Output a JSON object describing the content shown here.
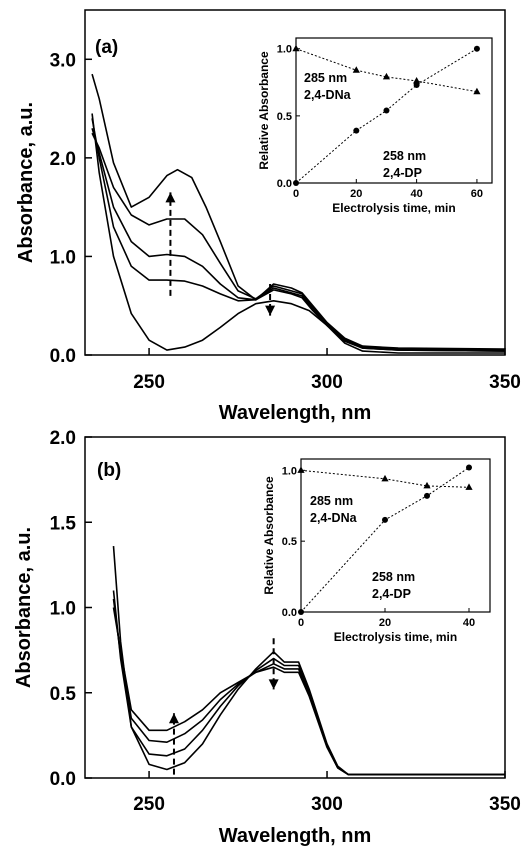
{
  "colors": {
    "ink": "#000000",
    "background": "#ffffff"
  },
  "chart_data": [
    {
      "type": "line",
      "panel_label": "(a)",
      "xlabel": "Wavelength, nm",
      "ylabel": "Absorbance, a.u.",
      "xlim": [
        232,
        350
      ],
      "ylim": [
        0,
        3.5
      ],
      "xticks": [
        250,
        300,
        350
      ],
      "yticks": [
        0.0,
        1.0,
        2.0,
        3.0
      ],
      "xtick_labels": [
        "250",
        "300",
        "350"
      ],
      "ytick_labels": [
        "0.0",
        "1.0",
        "2.0",
        "3.0"
      ],
      "grid": false,
      "series": [
        {
          "values": [
            [
              234,
              2.45
            ],
            [
              236,
              1.85
            ],
            [
              240,
              1.0
            ],
            [
              245,
              0.42
            ],
            [
              250,
              0.15
            ],
            [
              255,
              0.05
            ],
            [
              260,
              0.08
            ],
            [
              265,
              0.15
            ],
            [
              270,
              0.28
            ],
            [
              275,
              0.42
            ],
            [
              280,
              0.52
            ],
            [
              285,
              0.55
            ],
            [
              290,
              0.52
            ],
            [
              295,
              0.45
            ],
            [
              300,
              0.3
            ],
            [
              305,
              0.12
            ],
            [
              310,
              0.04
            ],
            [
              320,
              0.02
            ],
            [
              350,
              0.02
            ]
          ]
        },
        {
          "values": [
            [
              234,
              2.4
            ],
            [
              236,
              2.0
            ],
            [
              240,
              1.3
            ],
            [
              245,
              0.9
            ],
            [
              250,
              0.76
            ],
            [
              255,
              0.76
            ],
            [
              260,
              0.75
            ],
            [
              265,
              0.7
            ],
            [
              270,
              0.62
            ],
            [
              275,
              0.55
            ],
            [
              280,
              0.56
            ],
            [
              285,
              0.66
            ],
            [
              290,
              0.62
            ],
            [
              293,
              0.58
            ],
            [
              296,
              0.45
            ],
            [
              300,
              0.3
            ],
            [
              305,
              0.14
            ],
            [
              310,
              0.07
            ],
            [
              320,
              0.05
            ],
            [
              350,
              0.04
            ]
          ]
        },
        {
          "values": [
            [
              234,
              2.3
            ],
            [
              236,
              2.05
            ],
            [
              240,
              1.5
            ],
            [
              245,
              1.15
            ],
            [
              250,
              1.0
            ],
            [
              255,
              1.02
            ],
            [
              260,
              1.0
            ],
            [
              265,
              0.9
            ],
            [
              270,
              0.72
            ],
            [
              275,
              0.58
            ],
            [
              280,
              0.56
            ],
            [
              285,
              0.68
            ],
            [
              290,
              0.63
            ],
            [
              293,
              0.6
            ],
            [
              296,
              0.46
            ],
            [
              300,
              0.3
            ],
            [
              305,
              0.15
            ],
            [
              310,
              0.07
            ],
            [
              320,
              0.05
            ],
            [
              350,
              0.04
            ]
          ]
        },
        {
          "values": [
            [
              234,
              2.25
            ],
            [
              236,
              2.1
            ],
            [
              240,
              1.7
            ],
            [
              245,
              1.42
            ],
            [
              250,
              1.32
            ],
            [
              255,
              1.38
            ],
            [
              260,
              1.38
            ],
            [
              265,
              1.22
            ],
            [
              270,
              0.93
            ],
            [
              275,
              0.65
            ],
            [
              280,
              0.57
            ],
            [
              285,
              0.7
            ],
            [
              290,
              0.65
            ],
            [
              293,
              0.62
            ],
            [
              296,
              0.48
            ],
            [
              300,
              0.32
            ],
            [
              305,
              0.16
            ],
            [
              310,
              0.08
            ],
            [
              320,
              0.06
            ],
            [
              350,
              0.05
            ]
          ]
        },
        {
          "values": [
            [
              234,
              2.85
            ],
            [
              236,
              2.6
            ],
            [
              240,
              1.95
            ],
            [
              245,
              1.5
            ],
            [
              250,
              1.6
            ],
            [
              255,
              1.82
            ],
            [
              258,
              1.88
            ],
            [
              262,
              1.8
            ],
            [
              266,
              1.5
            ],
            [
              270,
              1.15
            ],
            [
              275,
              0.7
            ],
            [
              280,
              0.56
            ],
            [
              285,
              0.72
            ],
            [
              290,
              0.68
            ],
            [
              293,
              0.63
            ],
            [
              296,
              0.5
            ],
            [
              300,
              0.33
            ],
            [
              305,
              0.17
            ],
            [
              310,
              0.09
            ],
            [
              320,
              0.07
            ],
            [
              350,
              0.06
            ]
          ]
        }
      ],
      "annotations": [
        {
          "type": "arrow",
          "direction": "up",
          "x": 256,
          "from": 0.6,
          "to": 1.65
        },
        {
          "type": "arrow",
          "direction": "down",
          "x": 284,
          "from": 0.72,
          "to": 0.4
        }
      ],
      "inset": {
        "type": "scatter",
        "xlabel": "Electrolysis time, min",
        "ylabel": "Relative Absorbance",
        "xlim": [
          0,
          65
        ],
        "ylim": [
          0,
          1.08
        ],
        "xticks": [
          0,
          20,
          40,
          60
        ],
        "yticks": [
          0.0,
          0.5,
          1.0
        ],
        "xtick_labels": [
          "0",
          "20",
          "40",
          "60"
        ],
        "ytick_labels": [
          "0.0",
          "0.5",
          "1.0"
        ],
        "series": [
          {
            "name": "285 nm 2,4-DNa",
            "marker": "triangle",
            "x": [
              0,
              20,
              30,
              40,
              60
            ],
            "y": [
              1.0,
              0.84,
              0.79,
              0.76,
              0.68
            ]
          },
          {
            "name": "258 nm 2,4-DP",
            "marker": "circle",
            "x": [
              0,
              20,
              30,
              40,
              60
            ],
            "y": [
              0.0,
              0.39,
              0.54,
              0.73,
              1.0
            ]
          }
        ],
        "labels": [
          {
            "line1": "285 nm",
            "line2": "2,4-DNa"
          },
          {
            "line1": "258 nm",
            "line2": "2,4-DP"
          }
        ]
      }
    },
    {
      "type": "line",
      "panel_label": "(b)",
      "xlabel": "Wavelength, nm",
      "ylabel": "Absorbance, a.u.",
      "xlim": [
        232,
        350
      ],
      "ylim": [
        0,
        2.0
      ],
      "xticks": [
        250,
        300,
        350
      ],
      "yticks": [
        0.0,
        0.5,
        1.0,
        1.5,
        2.0
      ],
      "xtick_labels": [
        "250",
        "300",
        "350"
      ],
      "ytick_labels": [
        "0.0",
        "0.5",
        "1.0",
        "1.5",
        "2.0"
      ],
      "grid": false,
      "series": [
        {
          "values": [
            [
              240,
              1.36
            ],
            [
              242,
              0.8
            ],
            [
              245,
              0.3
            ],
            [
              250,
              0.08
            ],
            [
              255,
              0.05
            ],
            [
              260,
              0.09
            ],
            [
              265,
              0.2
            ],
            [
              270,
              0.37
            ],
            [
              275,
              0.52
            ],
            [
              280,
              0.64
            ],
            [
              285,
              0.74
            ],
            [
              288,
              0.68
            ],
            [
              292,
              0.68
            ],
            [
              295,
              0.52
            ],
            [
              300,
              0.2
            ],
            [
              303,
              0.07
            ],
            [
              306,
              0.02
            ],
            [
              350,
              0.02
            ]
          ]
        },
        {
          "values": [
            [
              240,
              1.1
            ],
            [
              242,
              0.7
            ],
            [
              245,
              0.3
            ],
            [
              250,
              0.14
            ],
            [
              255,
              0.13
            ],
            [
              260,
              0.17
            ],
            [
              265,
              0.28
            ],
            [
              270,
              0.42
            ],
            [
              275,
              0.54
            ],
            [
              280,
              0.63
            ],
            [
              285,
              0.7
            ],
            [
              288,
              0.66
            ],
            [
              292,
              0.66
            ],
            [
              295,
              0.5
            ],
            [
              300,
              0.19
            ],
            [
              303,
              0.06
            ],
            [
              306,
              0.02
            ],
            [
              350,
              0.02
            ]
          ]
        },
        {
          "values": [
            [
              240,
              1.05
            ],
            [
              242,
              0.72
            ],
            [
              245,
              0.35
            ],
            [
              250,
              0.22
            ],
            [
              255,
              0.21
            ],
            [
              260,
              0.26
            ],
            [
              265,
              0.34
            ],
            [
              270,
              0.46
            ],
            [
              275,
              0.55
            ],
            [
              280,
              0.62
            ],
            [
              285,
              0.67
            ],
            [
              288,
              0.64
            ],
            [
              292,
              0.64
            ],
            [
              295,
              0.49
            ],
            [
              300,
              0.19
            ],
            [
              303,
              0.06
            ],
            [
              306,
              0.02
            ],
            [
              350,
              0.02
            ]
          ]
        },
        {
          "values": [
            [
              240,
              1.0
            ],
            [
              242,
              0.75
            ],
            [
              245,
              0.4
            ],
            [
              250,
              0.28
            ],
            [
              255,
              0.28
            ],
            [
              260,
              0.33
            ],
            [
              265,
              0.4
            ],
            [
              270,
              0.5
            ],
            [
              275,
              0.56
            ],
            [
              280,
              0.62
            ],
            [
              285,
              0.65
            ],
            [
              288,
              0.62
            ],
            [
              292,
              0.62
            ],
            [
              295,
              0.48
            ],
            [
              300,
              0.18
            ],
            [
              303,
              0.06
            ],
            [
              306,
              0.02
            ],
            [
              350,
              0.02
            ]
          ]
        }
      ],
      "annotations": [
        {
          "type": "arrow",
          "direction": "up",
          "x": 257,
          "from": 0.02,
          "to": 0.38
        },
        {
          "type": "arrow",
          "direction": "down",
          "x": 285,
          "from": 0.82,
          "to": 0.52
        }
      ],
      "inset": {
        "type": "scatter",
        "xlabel": "Electrolysis time, min",
        "ylabel": "Relative Absorbance",
        "xlim": [
          0,
          45
        ],
        "ylim": [
          0,
          1.08
        ],
        "xticks": [
          0,
          20,
          40
        ],
        "yticks": [
          0.0,
          0.5,
          1.0
        ],
        "xtick_labels": [
          "0",
          "20",
          "40"
        ],
        "ytick_labels": [
          "0.0",
          "0.5",
          "1.0"
        ],
        "series": [
          {
            "name": "285 nm 2,4-DNa",
            "marker": "triangle",
            "x": [
              0,
              20,
              30,
              40
            ],
            "y": [
              1.0,
              0.94,
              0.89,
              0.88
            ]
          },
          {
            "name": "258 nm 2,4-DP",
            "marker": "circle",
            "x": [
              0,
              20,
              30,
              40
            ],
            "y": [
              0.0,
              0.65,
              0.82,
              1.02
            ]
          }
        ],
        "labels": [
          {
            "line1": "285 nm",
            "line2": "2,4-DNa"
          },
          {
            "line1": "258 nm",
            "line2": "2,4-DP"
          }
        ]
      }
    }
  ]
}
